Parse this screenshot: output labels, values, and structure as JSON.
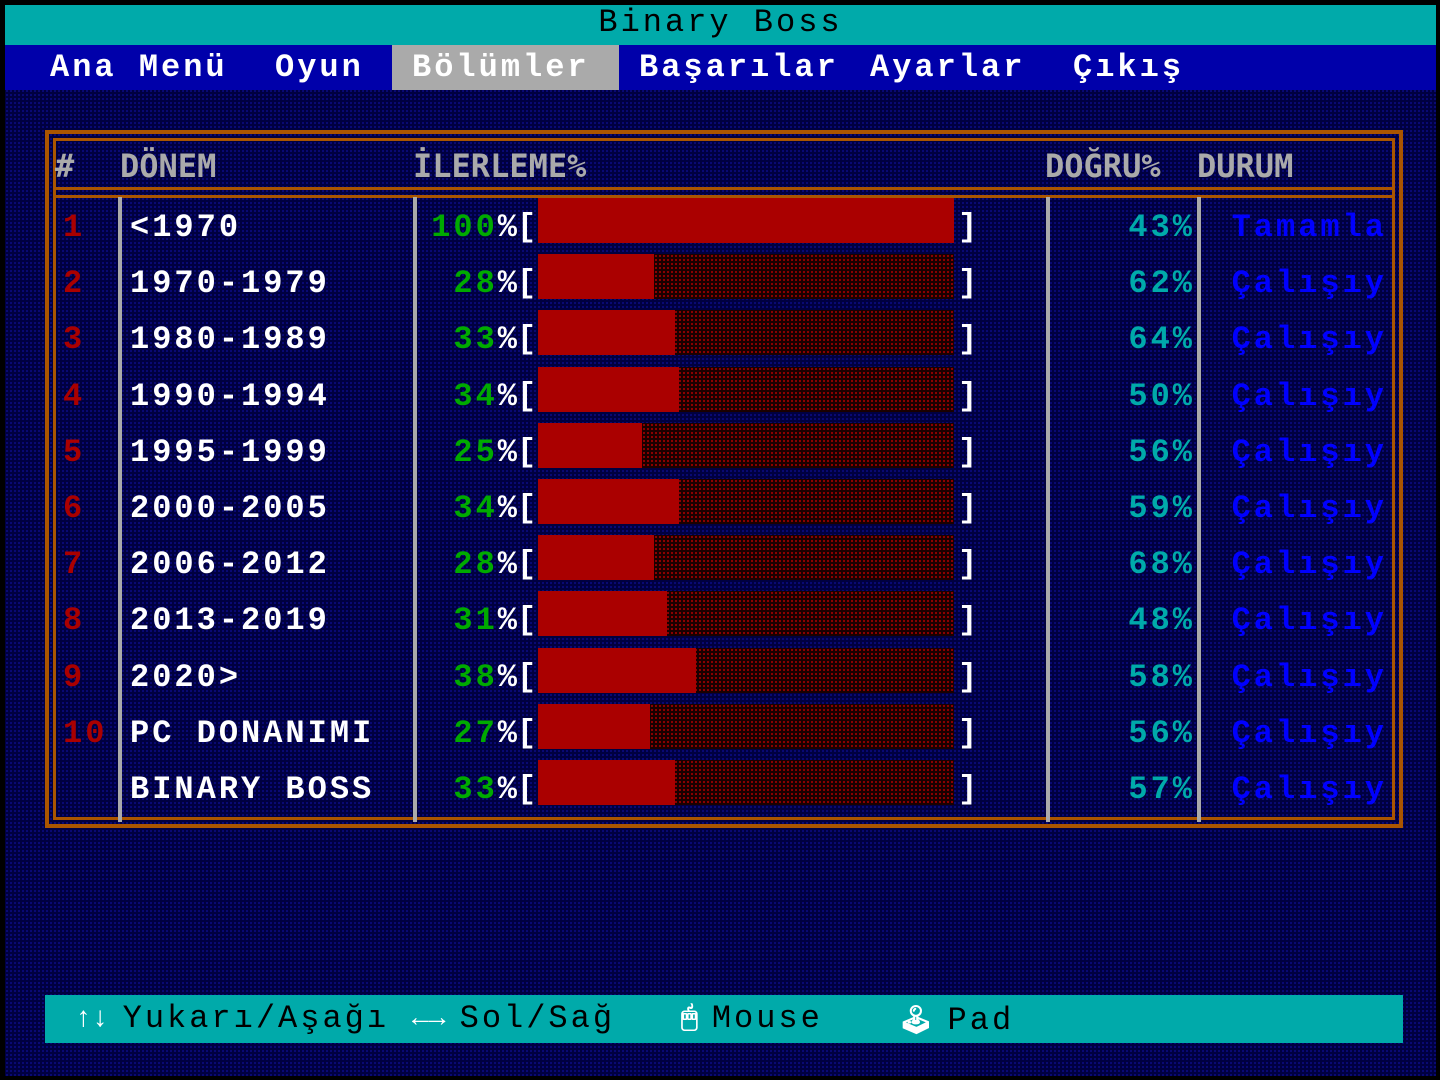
{
  "title": "Binary Boss",
  "menu": [
    {
      "label": "Ana Menü",
      "active": false
    },
    {
      "label": "Oyun",
      "active": false
    },
    {
      "label": "Bölümler",
      "active": true
    },
    {
      "label": "Başarılar",
      "active": false
    },
    {
      "label": "Ayarlar",
      "active": false
    },
    {
      "label": "Çıkış",
      "active": false
    }
  ],
  "table": {
    "headers": {
      "num": "#",
      "period": "DÖNEM",
      "progress": "İLERLEME%",
      "accuracy": "DOĞRU%",
      "status": "DURUM"
    },
    "rows": [
      {
        "num": "1",
        "period": "<1970",
        "progress": 100,
        "accuracy": "43",
        "status": "Tamamla"
      },
      {
        "num": "2",
        "period": "1970-1979",
        "progress": 28,
        "accuracy": "62",
        "status": "Çalışıy"
      },
      {
        "num": "3",
        "period": "1980-1989",
        "progress": 33,
        "accuracy": "64",
        "status": "Çalışıy"
      },
      {
        "num": "4",
        "period": "1990-1994",
        "progress": 34,
        "accuracy": "50",
        "status": "Çalışıy"
      },
      {
        "num": "5",
        "period": "1995-1999",
        "progress": 25,
        "accuracy": "56",
        "status": "Çalışıy"
      },
      {
        "num": "6",
        "period": "2000-2005",
        "progress": 34,
        "accuracy": "59",
        "status": "Çalışıy"
      },
      {
        "num": "7",
        "period": "2006-2012",
        "progress": 28,
        "accuracy": "68",
        "status": "Çalışıy"
      },
      {
        "num": "8",
        "period": "2013-2019",
        "progress": 31,
        "accuracy": "48",
        "status": "Çalışıy"
      },
      {
        "num": "9",
        "period": "2020>",
        "progress": 38,
        "accuracy": "58",
        "status": "Çalışıy"
      },
      {
        "num": "10",
        "period": "PC DONANIMI",
        "progress": 27,
        "accuracy": "56",
        "status": "Çalışıy"
      },
      {
        "num": "",
        "period": "BINARY BOSS",
        "progress": 33,
        "accuracy": "57",
        "status": "Çalışıy"
      }
    ]
  },
  "footer": [
    {
      "icon": "up-down-arrows-icon",
      "glyph": "↑↓",
      "label": "Yukarı/Aşağı"
    },
    {
      "icon": "left-right-arrows-icon",
      "glyph": "←→",
      "label": "Sol/Sağ"
    },
    {
      "icon": "mouse-icon",
      "glyph": "🖱",
      "label": "Mouse"
    },
    {
      "icon": "joystick-icon",
      "glyph": "🕹",
      "label": "Pad"
    }
  ],
  "colors": {
    "title_bar": "#00AAAA",
    "menu_bar": "#0000AA",
    "frame": "#AA5500",
    "bar_fill": "#AA0000",
    "progress_text": "#00AA00",
    "accuracy_text": "#00AAAA",
    "status_text": "#0000FF",
    "row_number": "#AA0000"
  }
}
